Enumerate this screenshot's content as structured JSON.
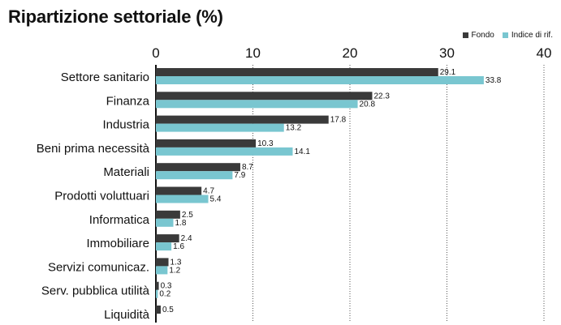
{
  "title": "Ripartizione settoriale (%)",
  "legend": {
    "fondo_label": "Fondo",
    "indice_label": "Indice di rif."
  },
  "colors": {
    "fondo": "#3a3a3a",
    "indice": "#79c6d0"
  },
  "chart_data": {
    "type": "bar",
    "orientation": "horizontal",
    "title": "Ripartizione settoriale (%)",
    "categories": [
      "Settore sanitario",
      "Finanza",
      "Industria",
      "Beni prima necessità",
      "Materiali",
      "Prodotti voluttuari",
      "Informatica",
      "Immobiliare",
      "Servizi comunicaz.",
      "Serv. pubblica utilità",
      "Liquidità"
    ],
    "series": [
      {
        "name": "Fondo",
        "values": [
          29.1,
          22.3,
          17.8,
          10.3,
          8.7,
          4.7,
          2.5,
          2.4,
          1.3,
          0.3,
          0.5
        ],
        "value_labels": [
          "29.1",
          "22.3",
          "17.8",
          "10.3",
          "8.7",
          "4.7",
          "2.5",
          "2.4",
          "1.3",
          "0.3",
          "0.5"
        ]
      },
      {
        "name": "Indice di rif.",
        "values": [
          33.8,
          20.8,
          13.2,
          14.1,
          7.9,
          5.4,
          1.8,
          1.6,
          1.2,
          0.2,
          null
        ],
        "value_labels": [
          "33.8",
          "20.8",
          "13.2",
          "14.1",
          "7.9",
          "5.4",
          "1.8",
          "1.6",
          "1.2",
          "0.2",
          null
        ]
      }
    ],
    "xlim": [
      0,
      40
    ],
    "x_ticks": [
      0,
      10,
      20,
      30,
      40
    ],
    "x_tick_labels": [
      "0",
      "10",
      "20",
      "30",
      "40"
    ],
    "axis_position": "top",
    "grid": "vertical dotted",
    "legend_position": "top-right"
  }
}
